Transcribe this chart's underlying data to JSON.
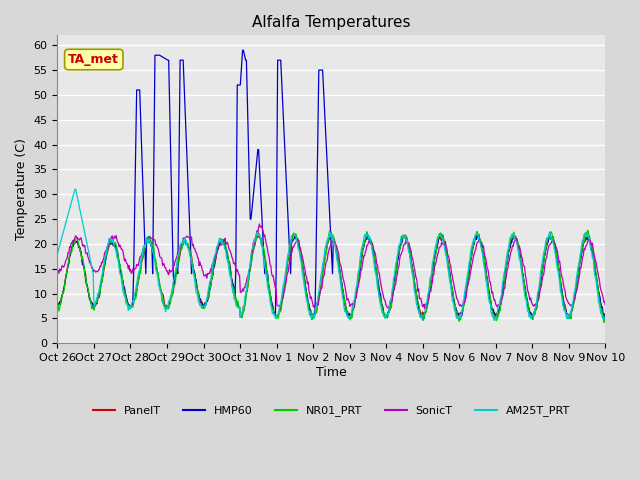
{
  "title": "Alfalfa Temperatures",
  "xlabel": "Time",
  "ylabel": "Temperature (C)",
  "ylim": [
    0,
    62
  ],
  "yticks": [
    0,
    5,
    10,
    15,
    20,
    25,
    30,
    35,
    40,
    45,
    50,
    55,
    60
  ],
  "background_color": "#d8d8d8",
  "plot_bg_color": "#e8e8e8",
  "legend_entries": [
    "PanelT",
    "HMP60",
    "NR01_PRT",
    "SonicT",
    "AM25T_PRT"
  ],
  "legend_colors": [
    "#cc0000",
    "#0000cc",
    "#00cc00",
    "#bb00bb",
    "#00cccc"
  ],
  "annotation_text": "TA_met",
  "annotation_color": "#cc0000",
  "annotation_bg": "#ffffaa",
  "x_tick_labels": [
    "Oct 26",
    "Oct 27",
    "Oct 28",
    "Oct 29",
    "Oct 30",
    "Oct 31",
    "Nov 1",
    "Nov 2",
    "Nov 3",
    "Nov 4",
    "Nov 5",
    "Nov 6",
    "Nov 7",
    "Nov 8",
    "Nov 9",
    "Nov 10"
  ],
  "title_fontsize": 11,
  "axis_label_fontsize": 9,
  "tick_fontsize": 8
}
